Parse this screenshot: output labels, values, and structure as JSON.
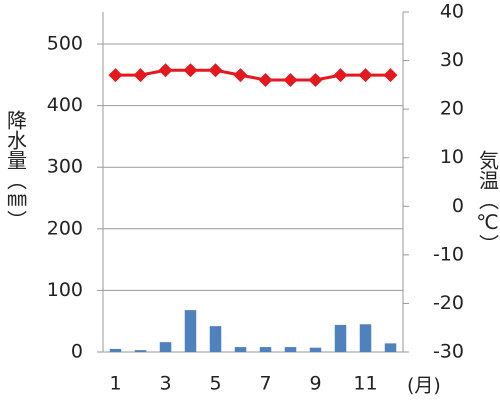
{
  "chart_data": {
    "type": "combo",
    "y_label": "降水量（㎜）",
    "y2_label": "気温（℃）",
    "x_label": "(月)",
    "categories": [
      "1",
      null,
      "3",
      null,
      "5",
      null,
      "7",
      null,
      "9",
      null,
      "11",
      null
    ],
    "series": [
      {
        "type": "bar",
        "color": "#4f81bd",
        "values": [
          5,
          3,
          16,
          68,
          42,
          8,
          8,
          8,
          7,
          44,
          45,
          14
        ]
      },
      {
        "type": "line",
        "axis": "y2",
        "color": "#e3191f",
        "values": [
          27,
          27,
          28,
          28,
          28,
          27,
          26,
          26,
          26,
          27,
          27,
          27
        ]
      }
    ],
    "ylim": [
      0,
      552
    ],
    "yticks": [
      0,
      100,
      200,
      300,
      400,
      500
    ],
    "y2lim": [
      -30,
      40
    ],
    "y2ticks": [
      -30,
      -20,
      -10,
      0,
      10,
      20,
      30,
      40
    ],
    "grid": true
  }
}
